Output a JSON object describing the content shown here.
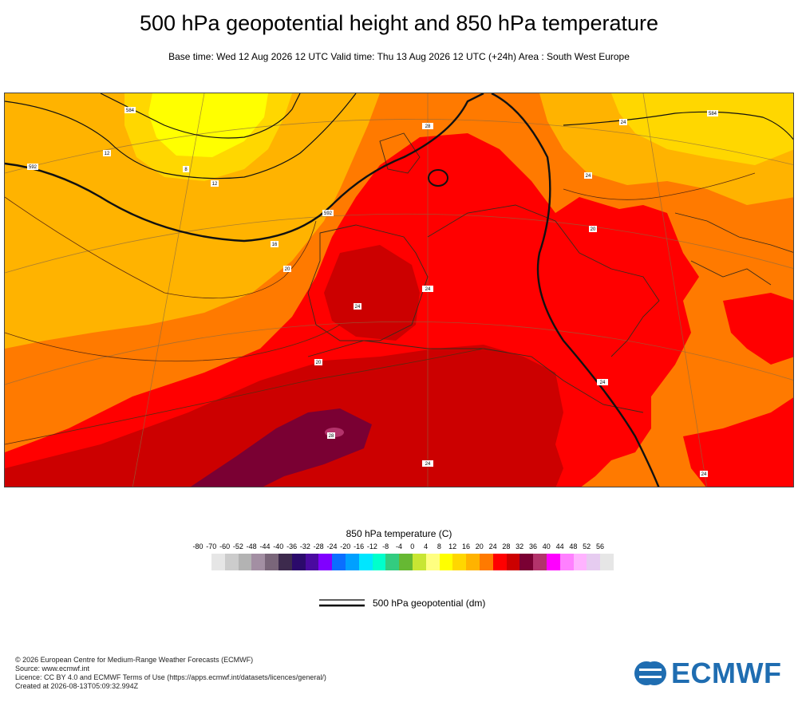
{
  "title": "500 hPa geopotential height and 850 hPa temperature",
  "subtitle": "Base time: Wed 12 Aug 2026 12 UTC Valid time: Thu 13 Aug 2026 12 UTC (+24h) Area : South West Europe",
  "contour_labels": [
    "584",
    "592",
    "12",
    "8",
    "12",
    "16",
    "20",
    "24",
    "28",
    "24",
    "20",
    "592",
    "584",
    "24",
    "24",
    "20",
    "24",
    "28",
    "24",
    "24"
  ],
  "colorbar": {
    "title": "850 hPa temperature (C)",
    "ticks": [
      "-80",
      "-70",
      "-60",
      "-52",
      "-48",
      "-44",
      "-40",
      "-36",
      "-32",
      "-28",
      "-24",
      "-20",
      "-16",
      "-12",
      "-8",
      "-4",
      "0",
      "4",
      "8",
      "12",
      "16",
      "20",
      "24",
      "28",
      "32",
      "36",
      "40",
      "44",
      "48",
      "52",
      "56"
    ],
    "colors": [
      "#e6e6e6",
      "#cccccc",
      "#b3b3b3",
      "#a38fa3",
      "#7a667a",
      "#3d2a4d",
      "#2b0a6b",
      "#4a0aa0",
      "#8000ff",
      "#0a6eff",
      "#00a0ff",
      "#00e6ff",
      "#00ffcc",
      "#33cc80",
      "#66b833",
      "#c8e633",
      "#ffff80",
      "#ffff00",
      "#ffd700",
      "#ffb300",
      "#ff7a00",
      "#ff0000",
      "#cc0000",
      "#7a0033",
      "#b3336b",
      "#ff00ff",
      "#ff80ff",
      "#ffb3ff",
      "#e6ccf0",
      "#e6e6e6"
    ]
  },
  "legend": {
    "label": "500 hPa geopotential (dm)"
  },
  "footer": {
    "line1": "© 2026 European Centre for Medium-Range Weather Forecasts (ECMWF)",
    "line2": "Source: www.ecmwf.int",
    "line3": "Licence: CC BY 4.0 and ECMWF Terms of Use (https://apps.ecmwf.int/datasets/licences/general/)",
    "line4": "Created at 2026-08-13T05:09:32.994Z"
  },
  "logo": {
    "text": "ECMWF",
    "color": "#1f6db1"
  }
}
